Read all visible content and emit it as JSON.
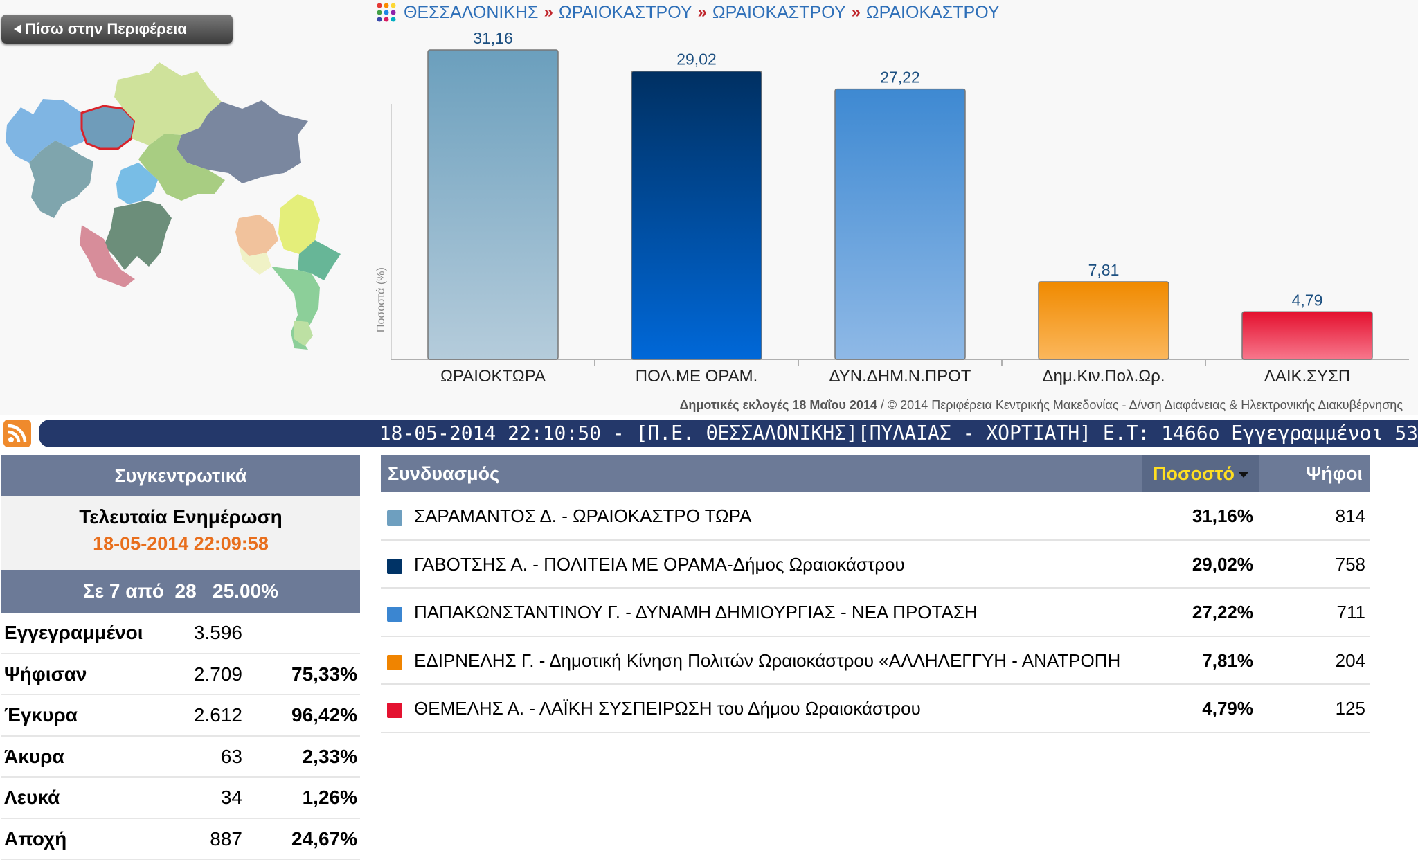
{
  "back_button": {
    "label": "Πίσω στην Περιφέρεια"
  },
  "breadcrumb": {
    "icon": "colored-dots-icon",
    "items": [
      "ΘΕΣΣΑΛΟΝΙΚΗΣ",
      "ΩΡΑΙΟΚΑΣΤΡΟΥ",
      "ΩΡΑΙΟΚΑΣΤΡΟΥ",
      "ΩΡΑΙΟΚΑΣΤΡΟΥ"
    ],
    "separator": "»"
  },
  "map": {
    "highlighted_region_color": "#d9232a"
  },
  "chart_data": {
    "type": "bar",
    "categories": [
      "ΩΡΑΙΟΚΤΩΡΑ",
      "ΠΟΛ.ΜΕ ΟΡΑΜ.",
      "ΔΥΝ.ΔΗΜ.Ν.ΠΡΟΤ",
      "Δημ.Κιν.Πολ.Ωρ.",
      "ΛΑΙΚ.ΣΥΣΠ"
    ],
    "values": [
      31.16,
      29.02,
      27.22,
      7.81,
      4.79
    ],
    "data_labels": [
      "31,16",
      "29,02",
      "27,22",
      "7,81",
      "4,79"
    ],
    "colors": [
      [
        "#6b9fbd",
        "#b5ccdb"
      ],
      [
        "#003062",
        "#0068d8"
      ],
      [
        "#3e89d2",
        "#8fb9e6"
      ],
      [
        "#f08a00",
        "#fbb75c"
      ],
      [
        "#e4102e",
        "#f7778c"
      ]
    ],
    "ylabel": "Ποσοστά (%)",
    "ylim": [
      0,
      32
    ],
    "grid": false
  },
  "chart_footer": {
    "bold": "Δημοτικές εκλογές 18 Μαΐου 2014",
    "rest": " / © 2014 Περιφέρεια Κεντρικής Μακεδονίας - Δ/νση Διαφάνειας & Ηλεκτρονικής Διακυβέρνησης"
  },
  "ticker": {
    "text": "18-05-2014 22:10:50 - [Π.Ε. ΘΕΣΣΑΛΟΝΙΚΗΣ][ΠΥΛΑΙΑΣ - ΧΟΡΤΙΑΤΗ] Ε.Τ: 1466ο Εγγεγραμμένοι 53"
  },
  "summary": {
    "title": "Συγκεντρωτικά",
    "last_update_label": "Τελευταία Ενημέρωση",
    "last_update_time": "18-05-2014 22:09:58",
    "progress": "Σε 7 από  28   25.00%",
    "stats": [
      {
        "name": "Εγγεγραμμένοι",
        "value": "3.596",
        "pct": ""
      },
      {
        "name": "Ψήφισαν",
        "value": "2.709",
        "pct": "75,33%"
      },
      {
        "name": "Έγκυρα",
        "value": "2.612",
        "pct": "96,42%"
      },
      {
        "name": "Άκυρα",
        "value": "63",
        "pct": "2,33%"
      },
      {
        "name": "Λευκά",
        "value": "34",
        "pct": "1,26%"
      },
      {
        "name": "Αποχή",
        "value": "887",
        "pct": "24,67%"
      }
    ]
  },
  "results": {
    "col_name": "Συνδυασμός",
    "col_pct": "Ποσοστό",
    "col_votes": "Ψήφοι",
    "rows": [
      {
        "color": "#6e9fbf",
        "name": "ΣΑΡΑΜΑΝΤΟΣ Δ. - ΩΡΑΙΟΚΑΣΤΡΟ ΤΩΡΑ",
        "pct": "31,16%",
        "votes": "814"
      },
      {
        "color": "#003366",
        "name": "ΓΑΒΟΤΣΗΣ Α. - ΠΟΛΙΤΕΙΑ ΜΕ ΟΡΑΜΑ-Δήμος Ωραιοκάστρου",
        "pct": "29,02%",
        "votes": "758"
      },
      {
        "color": "#3b86d1",
        "name": "ΠΑΠΑΚΩΝΣΤΑΝΤΙΝΟΥ Γ. - ΔΥΝΑΜΗ ΔΗΜΙΟΥΡΓΙΑΣ - ΝΕΑ ΠΡΟΤΑΣΗ",
        "pct": "27,22%",
        "votes": "711"
      },
      {
        "color": "#f08400",
        "name": "ΕΔΙΡΝΕΛΗΣ Γ. - Δημοτική Κίνηση Πολιτών Ωραιοκάστρου «ΑΛΛΗΛΕΓΓΥΗ - ΑΝΑΤΡΟΠΗ",
        "pct": "7,81%",
        "votes": "204"
      },
      {
        "color": "#e41230",
        "name": "ΘΕΜΕΛΗΣ Α. - ΛΑΪΚΗ ΣΥΣΠΕΙΡΩΣΗ του Δήμου Ωραιοκάστρου",
        "pct": "4,79%",
        "votes": "125"
      }
    ]
  }
}
